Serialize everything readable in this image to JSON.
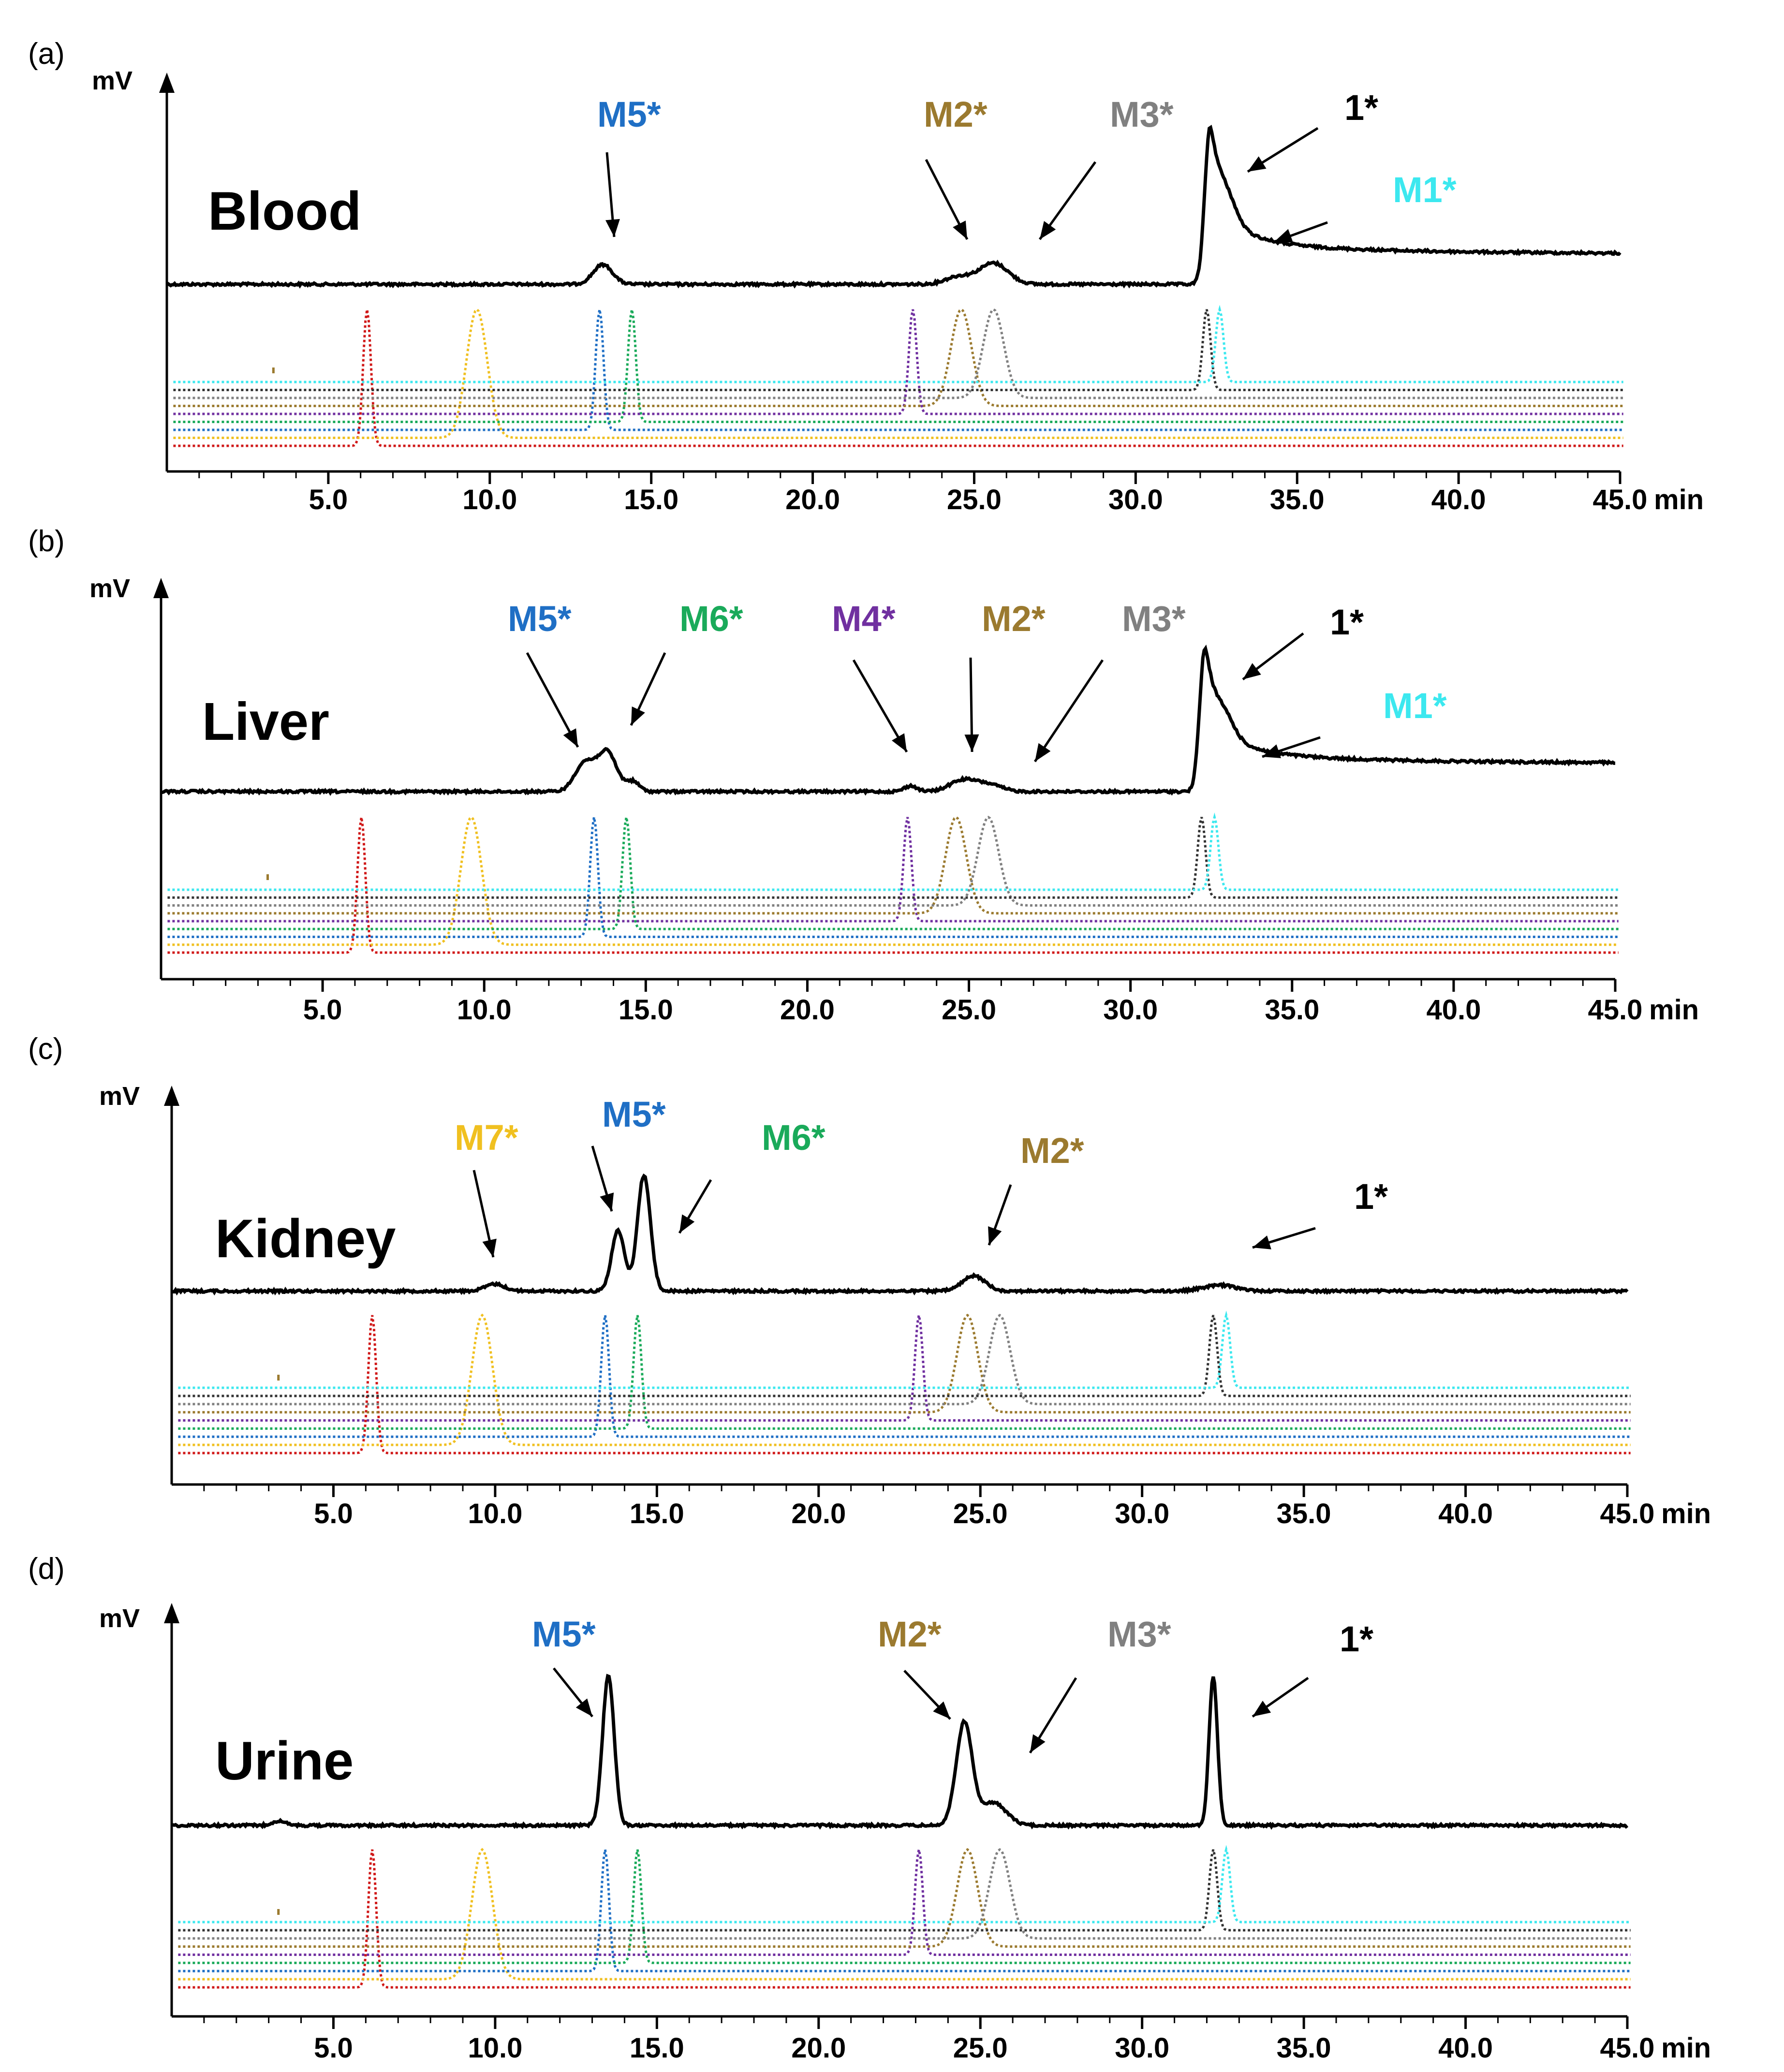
{
  "chart_data": [
    {
      "panel": "(a)",
      "type": "line",
      "title": "Blood",
      "ylabel": "mV",
      "xlabel": "min",
      "xlim": [
        0,
        45
      ],
      "xticks": [
        "5.0",
        "10.0",
        "15.0",
        "20.0",
        "25.0",
        "30.0",
        "35.0",
        "40.0",
        "45.0"
      ],
      "grid": false,
      "sample_peaks": [
        {
          "rt": 13.5,
          "height": 0.13,
          "width": 0.3
        },
        {
          "rt": 24.5,
          "height": 0.05,
          "width": 0.4
        },
        {
          "rt": 25.6,
          "height": 0.14,
          "width": 0.45
        },
        {
          "rt": 32.3,
          "height": 1.0,
          "width": 0.16,
          "tail": 0.55
        },
        {
          "rt": 32.8,
          "height": 0.15,
          "width": 0.3
        }
      ],
      "annotations": [
        {
          "text": "M5*",
          "color": "#1f6fc5",
          "bold": true,
          "target_rt": 13.5
        },
        {
          "text": "M2*",
          "color": "#9b7a2f",
          "bold": true,
          "target_rt": 24.6
        },
        {
          "text": "M3*",
          "color": "#808080",
          "bold": false,
          "target_rt": 26.0
        },
        {
          "text": "1*",
          "color": "#000000",
          "bold": false,
          "target_rt": 32.5
        },
        {
          "text": "M1*",
          "color": "#3ce8ef",
          "bold": true,
          "target_rt": 33.2
        }
      ]
    },
    {
      "panel": "(b)",
      "type": "line",
      "title": "Liver",
      "ylabel": "mV",
      "xlabel": "min",
      "xlim": [
        0,
        45
      ],
      "xticks": [
        "5.0",
        "10.0",
        "15.0",
        "20.0",
        "25.0",
        "30.0",
        "35.0",
        "40.0",
        "45.0"
      ],
      "grid": false,
      "sample_peaks": [
        {
          "rt": 13.1,
          "height": 0.2,
          "width": 0.3
        },
        {
          "rt": 13.8,
          "height": 0.28,
          "width": 0.3
        },
        {
          "rt": 14.6,
          "height": 0.07,
          "width": 0.2
        },
        {
          "rt": 23.2,
          "height": 0.04,
          "width": 0.2
        },
        {
          "rt": 24.8,
          "height": 0.08,
          "width": 0.4
        },
        {
          "rt": 25.6,
          "height": 0.05,
          "width": 0.4
        },
        {
          "rt": 32.3,
          "height": 1.0,
          "width": 0.16,
          "tail": 0.55
        },
        {
          "rt": 32.9,
          "height": 0.13,
          "width": 0.3
        }
      ],
      "annotations": [
        {
          "text": "M5*",
          "color": "#1f6fc5",
          "bold": true,
          "target_rt": 12.8
        },
        {
          "text": "M6*",
          "color": "#1aaa5a",
          "bold": true,
          "target_rt": 14.0
        },
        {
          "text": "M4*",
          "color": "#7030a0",
          "bold": true,
          "target_rt": 23.0
        },
        {
          "text": "M2*",
          "color": "#9b7a2f",
          "bold": true,
          "target_rt": 24.8
        },
        {
          "text": "M3*",
          "color": "#808080",
          "bold": false,
          "target_rt": 26.5
        },
        {
          "text": "1*",
          "color": "#000000",
          "bold": true,
          "target_rt": 32.5
        },
        {
          "text": "M1*",
          "color": "#3ce8ef",
          "bold": true,
          "target_rt": 33.2
        }
      ]
    },
    {
      "panel": "(c)",
      "type": "line",
      "title": "Kidney",
      "ylabel": "mV",
      "xlabel": "min",
      "xlim": [
        0,
        45
      ],
      "xticks": [
        "5.0",
        "10.0",
        "15.0",
        "20.0",
        "25.0",
        "30.0",
        "35.0",
        "40.0",
        "45.0"
      ],
      "grid": false,
      "sample_peaks": [
        {
          "rt": 10.0,
          "height": 0.06,
          "width": 0.3
        },
        {
          "rt": 13.8,
          "height": 0.52,
          "width": 0.2
        },
        {
          "rt": 14.6,
          "height": 1.0,
          "width": 0.2
        },
        {
          "rt": 24.8,
          "height": 0.13,
          "width": 0.35
        },
        {
          "rt": 32.4,
          "height": 0.05,
          "width": 0.5
        }
      ],
      "annotations": [
        {
          "text": "M7*",
          "color": "#f0c020",
          "bold": true,
          "target_rt": 10.0
        },
        {
          "text": "M5*",
          "color": "#1f6fc5",
          "bold": true,
          "target_rt": 13.6
        },
        {
          "text": "M6*",
          "color": "#1aaa5a",
          "bold": true,
          "target_rt": 15.0
        },
        {
          "text": "M2*",
          "color": "#9b7a2f",
          "bold": true,
          "target_rt": 24.8
        },
        {
          "text": "1*",
          "color": "#000000",
          "bold": false,
          "target_rt": 33.0
        }
      ]
    },
    {
      "panel": "(d)",
      "type": "line",
      "title": "Urine",
      "ylabel": "mV",
      "xlabel": "min",
      "xlim": [
        0,
        45
      ],
      "xticks": [
        "5.0",
        "10.0",
        "15.0",
        "20.0",
        "25.0",
        "30.0",
        "35.0",
        "40.0",
        "45.0"
      ],
      "grid": false,
      "sample_peaks": [
        {
          "rt": 3.3,
          "height": 0.03,
          "width": 0.2
        },
        {
          "rt": 13.5,
          "height": 1.0,
          "width": 0.18
        },
        {
          "rt": 24.5,
          "height": 0.68,
          "width": 0.25
        },
        {
          "rt": 25.4,
          "height": 0.15,
          "width": 0.4
        },
        {
          "rt": 32.2,
          "height": 0.99,
          "width": 0.13
        }
      ],
      "annotations": [
        {
          "text": "M5*",
          "color": "#1f6fc5",
          "bold": true,
          "target_rt": 13.1
        },
        {
          "text": "M2*",
          "color": "#9b7a2f",
          "bold": true,
          "target_rt": 24.3
        },
        {
          "text": "M3*",
          "color": "#808080",
          "bold": false,
          "target_rt": 26.0
        },
        {
          "text": "1*",
          "color": "#000000",
          "bold": true,
          "target_rt": 32.6
        }
      ]
    }
  ],
  "standards": [
    {
      "name": "red",
      "color": "#d01818",
      "rt": 6.2
    },
    {
      "name": "yellow",
      "color": "#f0c020",
      "rt": 9.6
    },
    {
      "name": "blue",
      "color": "#1f6fc5",
      "rt": 13.4
    },
    {
      "name": "green",
      "color": "#1aaa5a",
      "rt": 14.4
    },
    {
      "name": "purple",
      "color": "#7030a0",
      "rt": 23.1
    },
    {
      "name": "brown",
      "color": "#9b7a2f",
      "rt": 24.6
    },
    {
      "name": "gray",
      "color": "#808080",
      "rt": 25.6
    },
    {
      "name": "black",
      "color": "#333333",
      "rt": 32.2
    },
    {
      "name": "cyan",
      "color": "#3ce8ef",
      "rt": 32.6
    }
  ]
}
